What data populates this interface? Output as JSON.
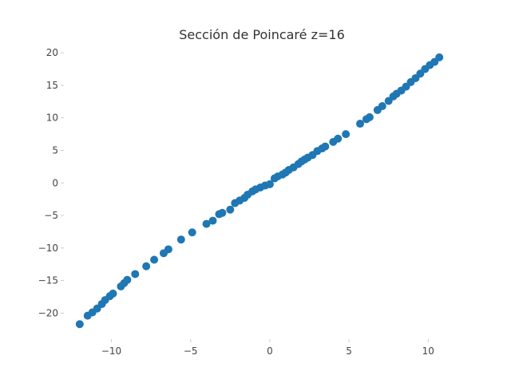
{
  "chart_data": {
    "type": "scatter",
    "title": "Sección de Poincaré z=16",
    "xlabel": "",
    "ylabel": "",
    "xlim": [
      -13,
      12
    ],
    "ylim": [
      -24,
      21
    ],
    "xticks": [
      -10,
      -5,
      0,
      5,
      10
    ],
    "xtick_labels": [
      "−10",
      "−5",
      "0",
      "5",
      "10"
    ],
    "yticks": [
      -20,
      -15,
      -10,
      -5,
      0,
      5,
      10,
      15,
      20
    ],
    "ytick_labels": [
      "−20",
      "−15",
      "−10",
      "−5",
      "0",
      "5",
      "10",
      "15",
      "20"
    ],
    "grid": false,
    "color": "#1f77b4",
    "series": [
      {
        "x": [
          -12.0,
          -11.5,
          -11.2,
          -10.9,
          -10.6,
          -10.4,
          -10.1,
          -9.9,
          -9.4,
          -9.2,
          -9.0,
          -8.5,
          -7.8,
          -7.3,
          -6.7,
          -6.4,
          -5.6,
          -4.9,
          -4.0,
          -3.6,
          -3.2,
          -3.0,
          -2.5,
          -2.2,
          -1.9,
          -1.6,
          -1.4,
          -1.1,
          -0.9,
          -0.6,
          -0.3,
          0.0,
          0.3,
          0.5,
          0.8,
          1.0,
          1.2,
          1.5,
          1.8,
          2.0,
          2.2,
          2.4,
          2.7,
          3.0,
          3.3,
          3.5,
          4.0,
          4.3,
          4.8,
          5.7,
          6.1,
          6.3,
          6.8,
          7.1,
          7.5,
          7.8,
          8.0,
          8.3,
          8.6,
          8.9,
          9.2,
          9.5,
          9.8,
          10.1,
          10.4,
          10.7
        ],
        "y": [
          -21.7,
          -20.4,
          -19.9,
          -19.3,
          -18.6,
          -18.0,
          -17.4,
          -17.0,
          -15.9,
          -15.4,
          -14.9,
          -14.0,
          -12.8,
          -11.8,
          -10.8,
          -10.2,
          -8.7,
          -7.6,
          -6.3,
          -5.8,
          -4.8,
          -4.6,
          -4.1,
          -3.1,
          -2.7,
          -2.3,
          -1.8,
          -1.3,
          -1.0,
          -0.7,
          -0.4,
          -0.2,
          0.7,
          1.0,
          1.3,
          1.6,
          2.0,
          2.4,
          2.9,
          3.3,
          3.6,
          3.9,
          4.3,
          4.9,
          5.3,
          5.6,
          6.3,
          6.8,
          7.5,
          9.1,
          9.8,
          10.1,
          11.2,
          11.8,
          12.6,
          13.3,
          13.7,
          14.2,
          14.8,
          15.5,
          16.1,
          16.8,
          17.5,
          18.1,
          18.6,
          19.3
        ]
      }
    ]
  }
}
